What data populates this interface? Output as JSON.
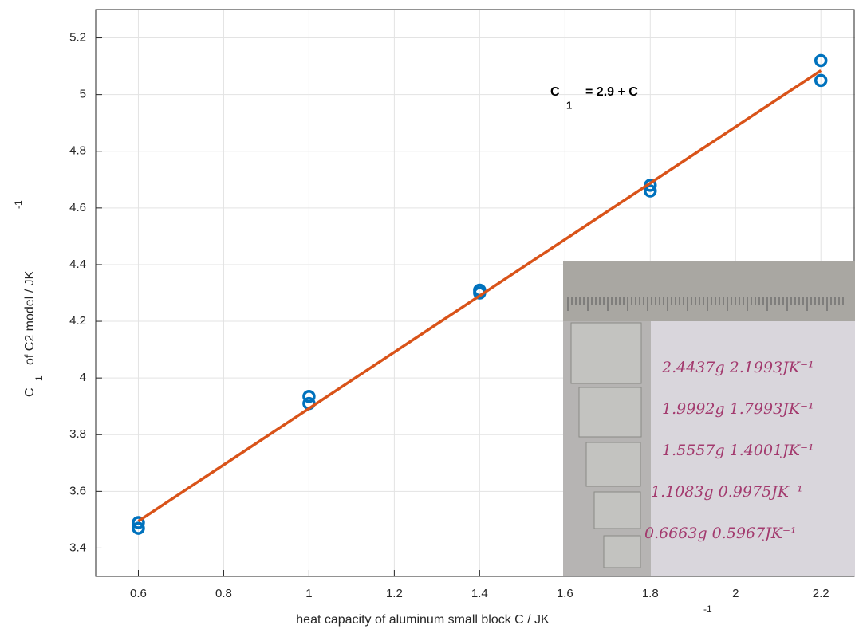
{
  "chart_data": {
    "type": "scatter",
    "x_label": {
      "text": "heat capacity of aluminum small block C / JK",
      "sup": "-1"
    },
    "y_label": {
      "text": "C",
      "sub": "1",
      "rest": "of C2 model / JK",
      "sup": "-1"
    },
    "annotation": {
      "text": "C",
      "sub": "1",
      "rest": "= 2.9 + C"
    },
    "series": [
      {
        "color": "#0072bd",
        "x": [
          0.6,
          0.6,
          1,
          1,
          1.4,
          1.4,
          1.8,
          1.8,
          2.2,
          2.2
        ],
        "values": [
          3.49,
          3.47,
          3.935,
          3.91,
          4.31,
          4.3,
          4.68,
          4.66,
          5.12,
          5.05
        ]
      },
      {
        "type": "line",
        "color": "#d95319",
        "x": [
          0.6,
          2.2
        ],
        "values": [
          3.495,
          5.085
        ]
      }
    ],
    "xlim": [
      0.5,
      2.28
    ],
    "ylim": [
      3.3,
      5.3
    ],
    "xticks": [
      0.6,
      0.8,
      1,
      1.2,
      1.4,
      1.6,
      1.8,
      2,
      2.2
    ],
    "yticks": [
      3.4,
      3.6,
      3.8,
      4,
      4.2,
      4.4,
      4.6,
      4.8,
      5,
      5.2
    ],
    "grid": true,
    "photo_labels": [
      "2.4437g 2.1993JK⁻¹",
      "1.9992g 1.7993JK⁻¹",
      "1.5557g 1.4001JK⁻¹",
      "1.1083g 0.9975JK⁻¹",
      "0.6663g 0.5967JK⁻¹"
    ]
  }
}
